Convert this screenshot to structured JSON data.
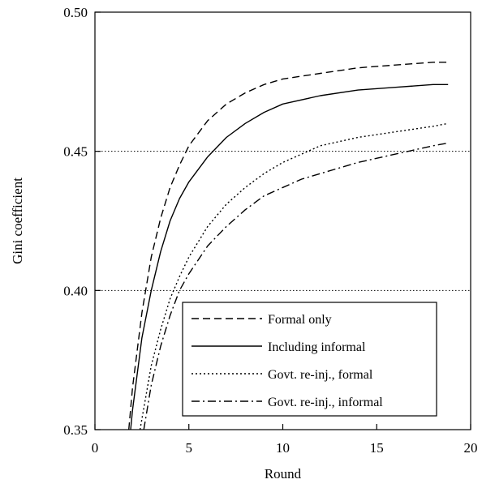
{
  "chart_data": {
    "type": "line",
    "title": "",
    "xlabel": "Round",
    "ylabel": "Gini coefficient",
    "xlim": [
      0,
      20
    ],
    "ylim": [
      0.35,
      0.5
    ],
    "xticks": [
      0,
      5,
      10,
      15,
      20
    ],
    "xtick_labels": [
      "0",
      "5",
      "10",
      "15",
      "20"
    ],
    "yticks": [
      0.35,
      0.4,
      0.45,
      0.5
    ],
    "ytick_labels": [
      "0.35",
      "0.40",
      "0.45",
      "0.50"
    ],
    "reference_lines": [
      0.4,
      0.45
    ],
    "grid": false,
    "legend_position": "lower-right",
    "series": [
      {
        "name": "Formal only",
        "style": "dashed",
        "x": [
          1.8,
          2.0,
          2.5,
          3.0,
          3.5,
          4.0,
          4.5,
          5.0,
          6.0,
          7.0,
          8.0,
          9.0,
          10.0,
          12.0,
          14.0,
          16.0,
          18.0,
          18.8
        ],
        "y": [
          0.35,
          0.365,
          0.392,
          0.412,
          0.426,
          0.437,
          0.445,
          0.452,
          0.461,
          0.467,
          0.471,
          0.474,
          0.476,
          0.478,
          0.48,
          0.481,
          0.482,
          0.482
        ]
      },
      {
        "name": "Including informal",
        "style": "solid",
        "x": [
          1.9,
          2.0,
          2.5,
          3.0,
          3.5,
          4.0,
          4.5,
          5.0,
          6.0,
          7.0,
          8.0,
          9.0,
          10.0,
          12.0,
          14.0,
          16.0,
          18.0,
          18.8
        ],
        "y": [
          0.35,
          0.357,
          0.383,
          0.4,
          0.414,
          0.425,
          0.433,
          0.439,
          0.448,
          0.455,
          0.46,
          0.464,
          0.467,
          0.47,
          0.472,
          0.473,
          0.474,
          0.474
        ]
      },
      {
        "name": "Govt. re-inj., formal",
        "style": "dotted",
        "x": [
          2.4,
          3.0,
          3.5,
          4.0,
          4.5,
          5.0,
          6.0,
          7.0,
          8.0,
          9.0,
          10.0,
          11.0,
          12.0,
          14.0,
          16.0,
          18.0,
          18.8
        ],
        "y": [
          0.35,
          0.373,
          0.386,
          0.397,
          0.405,
          0.412,
          0.423,
          0.431,
          0.437,
          0.442,
          0.446,
          0.449,
          0.452,
          0.455,
          0.457,
          0.459,
          0.46
        ]
      },
      {
        "name": "Govt. re-inj., informal",
        "style": "dashdot",
        "x": [
          2.6,
          3.0,
          3.5,
          4.0,
          4.5,
          5.0,
          6.0,
          7.0,
          8.0,
          9.0,
          10.0,
          11.0,
          12.0,
          14.0,
          16.0,
          18.0,
          18.8
        ],
        "y": [
          0.35,
          0.366,
          0.38,
          0.391,
          0.4,
          0.406,
          0.416,
          0.423,
          0.429,
          0.434,
          0.437,
          0.44,
          0.442,
          0.446,
          0.449,
          0.452,
          0.453
        ]
      }
    ]
  }
}
